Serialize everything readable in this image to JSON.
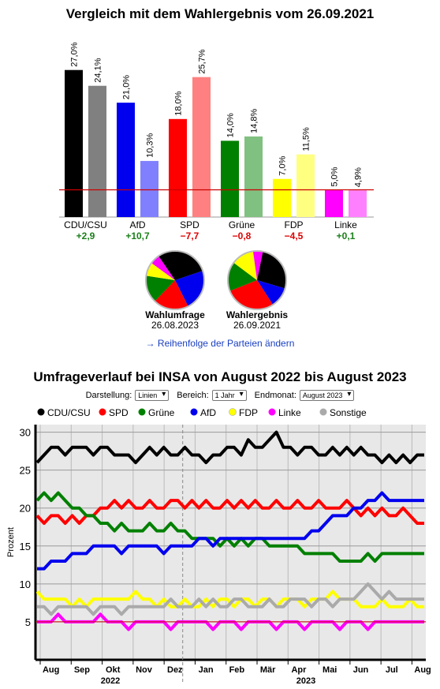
{
  "title_bar": "Vergleich mit dem Wahlergebnis vom 26.09.2021",
  "title_line": "Umfrageverlauf bei INSA von August 2022 bis August 2023",
  "link_text": "→ Reihenfolge der Parteien ändern",
  "controls": {
    "darstellung_label": "Darstellung:",
    "darstellung_value": "Linien",
    "bereich_label": "Bereich:",
    "bereich_value": "1 Jahr",
    "endmonat_label": "Endmonat:",
    "endmonat_value": "August 2023"
  },
  "pies": [
    {
      "label": "Wahlumfrage",
      "date": "26.08.2023"
    },
    {
      "label": "Wahlergebnis",
      "date": "26.09.2021"
    }
  ],
  "chart_data": [
    {
      "type": "bar",
      "categories": [
        "CDU/CSU",
        "AfD",
        "SPD",
        "Grüne",
        "FDP",
        "Linke"
      ],
      "series": [
        {
          "values": [
            27.0,
            21.0,
            18.0,
            14.0,
            7.0,
            5.0
          ]
        },
        {
          "values": [
            24.1,
            10.3,
            25.7,
            14.8,
            11.5,
            4.9
          ]
        }
      ],
      "value_labels_a": [
        "27,0%",
        "21,0%",
        "18,0%",
        "14,0%",
        "7,0%",
        "5,0%"
      ],
      "value_labels_b": [
        "24,1%",
        "10,3%",
        "25,7%",
        "14,8%",
        "11,5%",
        "4,9%"
      ],
      "diffs": [
        "+2,9",
        "+10,7",
        "−7,7",
        "−0,8",
        "−4,5",
        "+0,1"
      ],
      "diff_colors": [
        "#1a7f1a",
        "#1a7f1a",
        "#dd0000",
        "#dd0000",
        "#dd0000",
        "#1a7f1a"
      ],
      "colors_a": [
        "#000000",
        "#0000ee",
        "#ff0000",
        "#008000",
        "#ffff00",
        "#ff00ff"
      ],
      "colors_b": [
        "#808080",
        "#8080ff",
        "#ff8080",
        "#80c080",
        "#ffff80",
        "#ff80ff"
      ],
      "threshold": 5
    },
    {
      "type": "line",
      "title": "Umfrageverlauf bei INSA von August 2022 bis August 2023",
      "ylabel": "Prozent",
      "ylim": [
        0,
        31
      ],
      "yticks": [
        5,
        10,
        15,
        20,
        25,
        30
      ],
      "months": [
        "Aug",
        "Sep",
        "Okt",
        "Nov",
        "Dez",
        "Jan",
        "Feb",
        "Mär",
        "Apr",
        "Mai",
        "Jun",
        "Jul",
        "Aug"
      ],
      "years": [
        "2022",
        "2023"
      ],
      "grid": true,
      "legend_position": "top",
      "series": [
        {
          "name": "CDU/CSU",
          "color": "#000000",
          "values": [
            26,
            27,
            28,
            28,
            27,
            28,
            28,
            28,
            27,
            28,
            28,
            27,
            27,
            27,
            26,
            27,
            28,
            27,
            28,
            27,
            27,
            28,
            27,
            27,
            26,
            27,
            27,
            28,
            28,
            27,
            29,
            28,
            28,
            29,
            30,
            28,
            28,
            27,
            28,
            28,
            27,
            27,
            28,
            27,
            28,
            27,
            28,
            27,
            27,
            26,
            27,
            26,
            27,
            26,
            27,
            27
          ]
        },
        {
          "name": "SPD",
          "color": "#ff0000",
          "values": [
            19,
            18,
            19,
            19,
            18,
            19,
            18,
            19,
            19,
            20,
            20,
            21,
            20,
            21,
            20,
            20,
            21,
            20,
            20,
            21,
            21,
            20,
            21,
            20,
            21,
            20,
            20,
            21,
            20,
            21,
            20,
            21,
            20,
            20,
            21,
            20,
            20,
            21,
            20,
            20,
            21,
            20,
            20,
            20,
            21,
            20,
            19,
            20,
            19,
            20,
            19,
            19,
            20,
            19,
            18,
            18
          ]
        },
        {
          "name": "Grüne",
          "color": "#008000",
          "values": [
            21,
            22,
            21,
            22,
            21,
            20,
            20,
            19,
            19,
            18,
            18,
            17,
            18,
            17,
            17,
            17,
            18,
            17,
            17,
            18,
            17,
            17,
            16,
            16,
            16,
            16,
            15,
            16,
            15,
            16,
            15,
            16,
            16,
            15,
            15,
            15,
            15,
            15,
            14,
            14,
            14,
            14,
            14,
            13,
            13,
            13,
            13,
            14,
            13,
            14,
            14,
            14,
            14,
            14,
            14,
            14
          ]
        },
        {
          "name": "AfD",
          "color": "#0000ee",
          "values": [
            12,
            12,
            13,
            13,
            13,
            14,
            14,
            14,
            15,
            15,
            15,
            15,
            14,
            15,
            15,
            15,
            15,
            15,
            14,
            15,
            15,
            15,
            15,
            16,
            16,
            15,
            16,
            16,
            16,
            16,
            16,
            16,
            16,
            16,
            16,
            16,
            16,
            16,
            16,
            17,
            17,
            18,
            19,
            19,
            19,
            20,
            20,
            21,
            21,
            22,
            21,
            21,
            21,
            21,
            21,
            21
          ]
        },
        {
          "name": "FDP",
          "color": "#ffff00",
          "values": [
            9,
            8,
            8,
            8,
            8,
            7,
            8,
            7,
            8,
            8,
            8,
            8,
            8,
            8,
            9,
            8,
            8,
            7,
            8,
            7,
            7,
            8,
            7,
            7,
            8,
            7,
            8,
            8,
            7,
            8,
            8,
            7,
            8,
            8,
            7,
            8,
            8,
            8,
            7,
            8,
            8,
            8,
            9,
            8,
            8,
            8,
            7,
            7,
            7,
            8,
            7,
            7,
            7,
            8,
            7,
            7
          ]
        },
        {
          "name": "Linke",
          "color": "#ff00ff",
          "values": [
            5,
            5,
            5,
            6,
            5,
            5,
            5,
            5,
            5,
            6,
            5,
            5,
            5,
            4,
            5,
            5,
            5,
            5,
            5,
            4,
            5,
            5,
            5,
            5,
            5,
            4,
            5,
            5,
            5,
            4,
            5,
            5,
            5,
            5,
            4,
            5,
            5,
            5,
            4,
            5,
            5,
            5,
            5,
            4,
            5,
            5,
            5,
            4,
            5,
            5,
            5,
            5,
            5,
            5,
            5,
            5
          ]
        },
        {
          "name": "Sonstige",
          "color": "#aaaaaa",
          "values": [
            7,
            7,
            6,
            7,
            7,
            7,
            7,
            7,
            6,
            7,
            7,
            7,
            6,
            7,
            7,
            7,
            7,
            7,
            7,
            8,
            7,
            7,
            7,
            8,
            7,
            8,
            7,
            7,
            8,
            8,
            7,
            7,
            7,
            8,
            7,
            7,
            8,
            8,
            8,
            7,
            8,
            8,
            7,
            8,
            8,
            8,
            9,
            10,
            9,
            8,
            9,
            8,
            8,
            8,
            8,
            8
          ]
        }
      ]
    }
  ]
}
